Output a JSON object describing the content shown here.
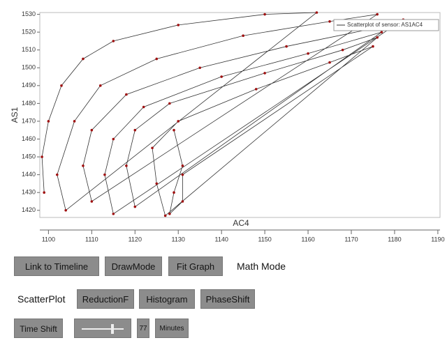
{
  "chart_data": {
    "type": "scatter",
    "connect_points": true,
    "x_label": "AC4",
    "y_label": "AS1",
    "xlim": [
      1098,
      1190.5
    ],
    "ylim": [
      1416,
      1531
    ],
    "xticks": [
      1100,
      1110,
      1120,
      1130,
      1140,
      1150,
      1160,
      1170,
      1180,
      1190
    ],
    "yticks": [
      1420,
      1430,
      1440,
      1450,
      1460,
      1470,
      1480,
      1490,
      1500,
      1510,
      1520,
      1530
    ],
    "grid": false,
    "legend": "upper right",
    "series": [
      {
        "name": "Scatterplot of sensor: AS1AC4",
        "color": "#a01010",
        "line_color": "#333333",
        "x": [
          1099,
          1098.5,
          1100,
          1103,
          1108,
          1115,
          1130,
          1150,
          1162,
          1104,
          1102,
          1106,
          1112,
          1125,
          1145,
          1165,
          1176,
          1110,
          1108,
          1110,
          1118,
          1135,
          1155,
          1175,
          1182,
          1115,
          1113,
          1115,
          1122,
          1140,
          1160,
          1177,
          1120,
          1118,
          1120,
          1128,
          1150,
          1168,
          1176,
          1127,
          1125,
          1124,
          1130,
          1148,
          1165,
          1175,
          1131,
          1131,
          1128,
          1129,
          1131,
          1129
        ],
        "y": [
          1430,
          1450,
          1470,
          1490,
          1505,
          1515,
          1524,
          1530,
          1531,
          1420,
          1440,
          1470,
          1490,
          1505,
          1518,
          1526,
          1530,
          1425,
          1445,
          1465,
          1485,
          1500,
          1512,
          1522,
          1527,
          1418,
          1440,
          1460,
          1478,
          1495,
          1508,
          1520,
          1422,
          1445,
          1465,
          1480,
          1497,
          1510,
          1517,
          1417,
          1435,
          1455,
          1470,
          1488,
          1503,
          1512,
          1440,
          1425,
          1418,
          1430,
          1445,
          1465
        ]
      }
    ]
  },
  "controls": {
    "row1": [
      "Link to Timeline",
      "DrawMode",
      "Fit Graph"
    ],
    "math_mode": "Math Mode",
    "scatter_label": "ScatterPlot",
    "row2": [
      "ReductionF",
      "Histogram",
      "PhaseShift"
    ],
    "time_shift": "Time Shift",
    "time_shift_value": 77,
    "unit": "Minutes"
  }
}
